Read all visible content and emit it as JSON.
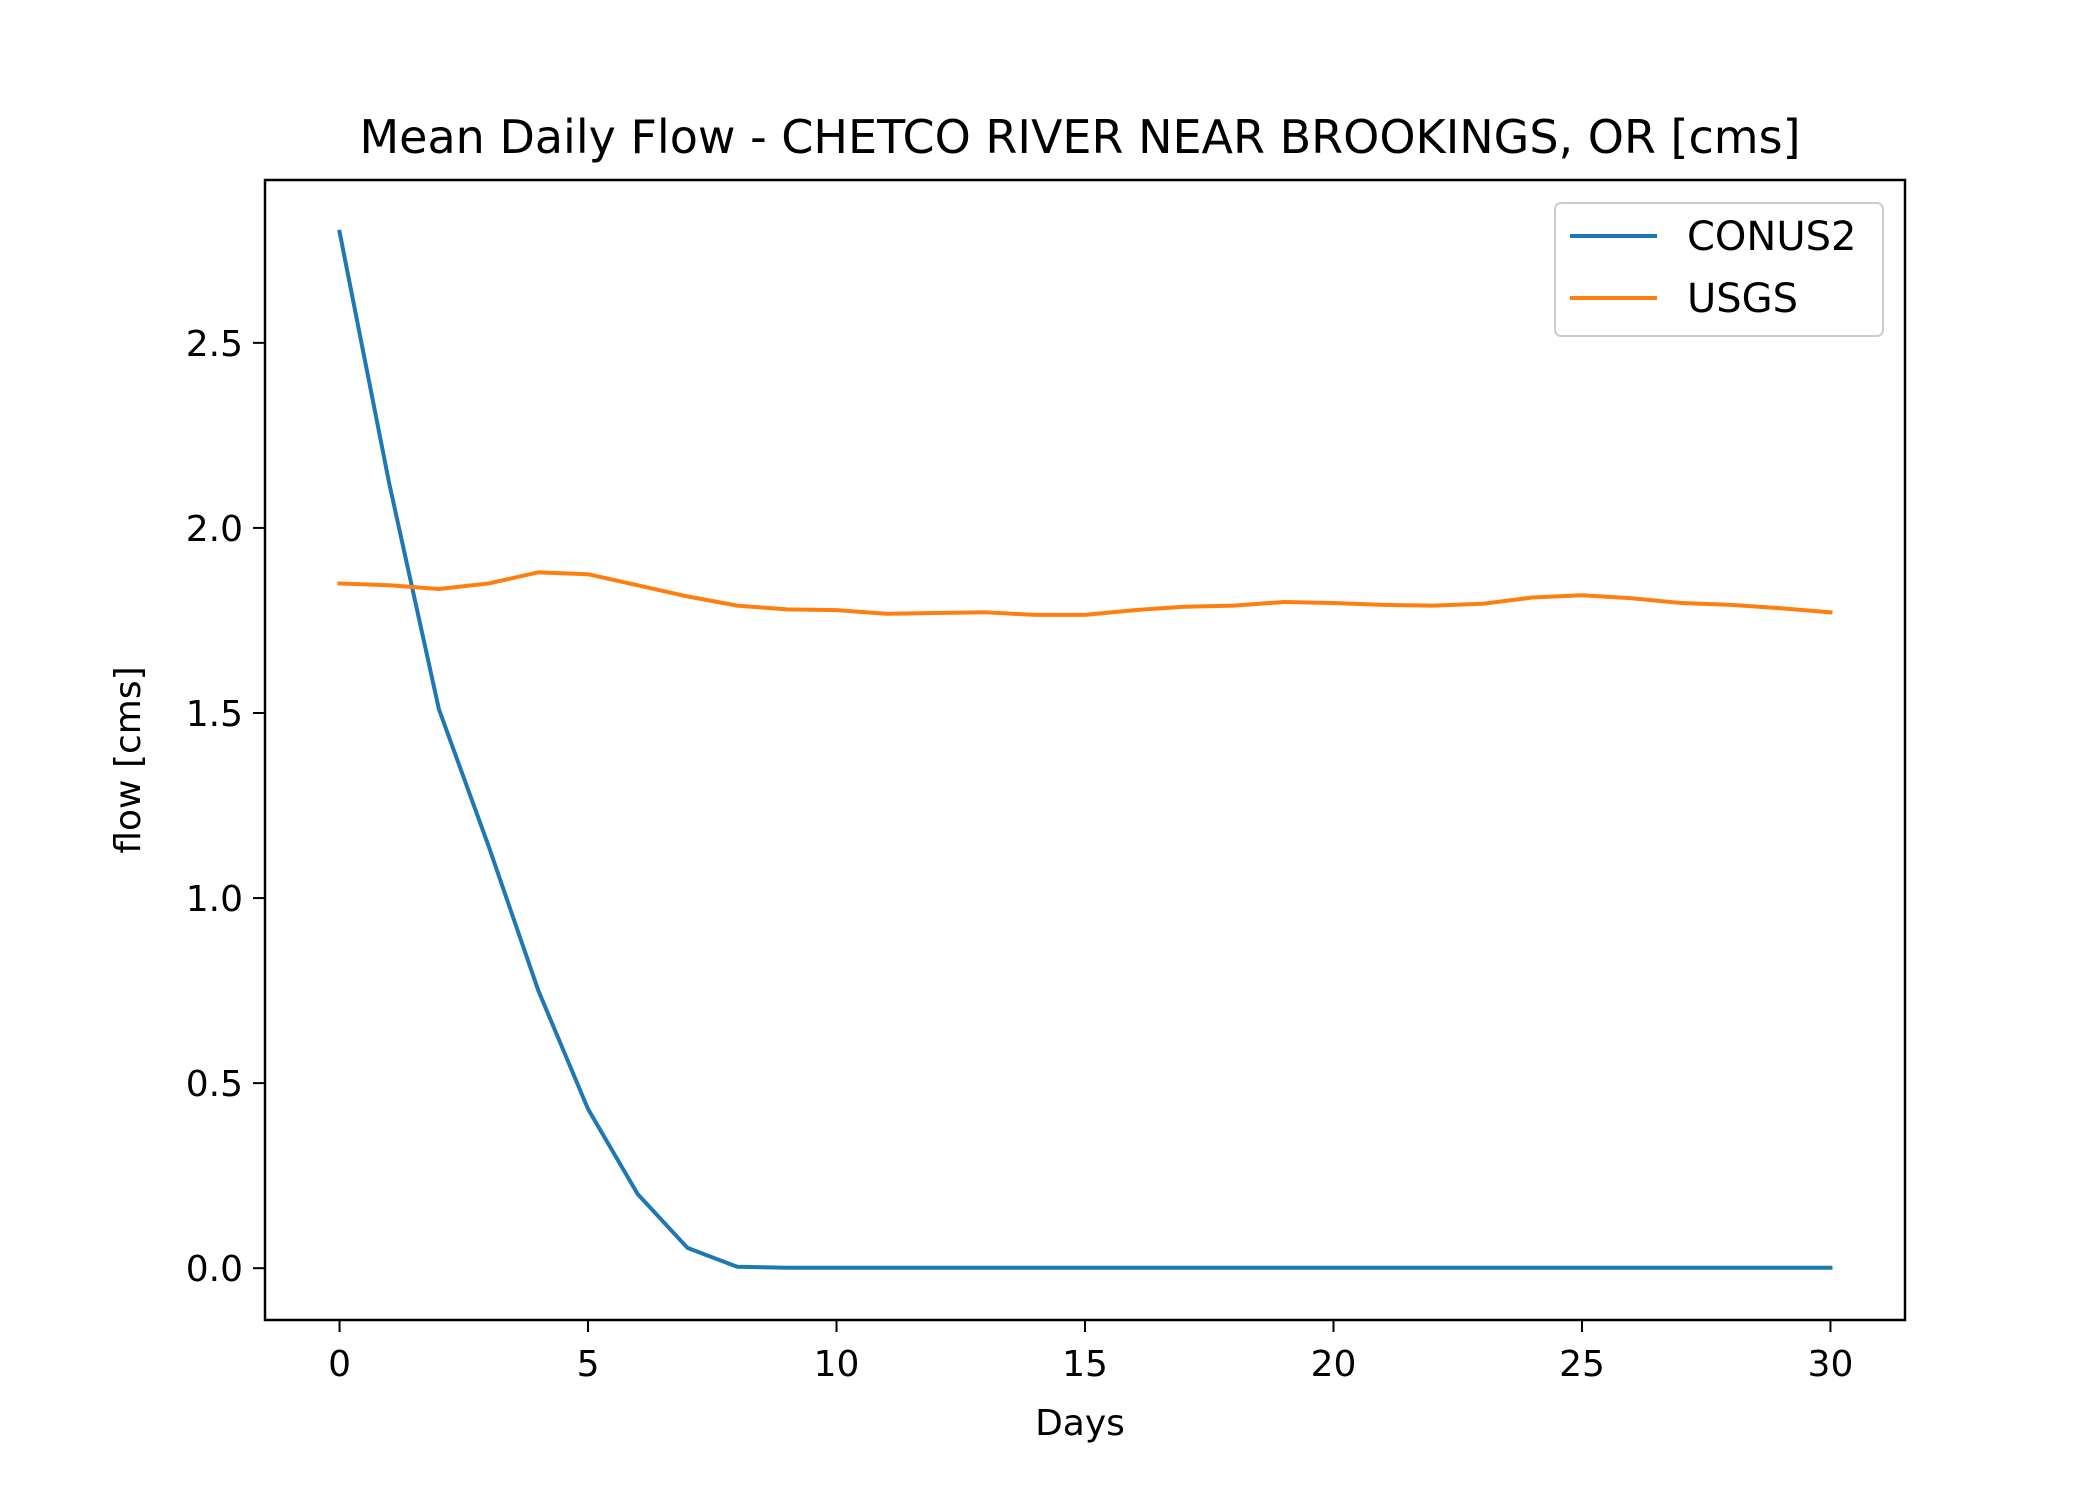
{
  "chart_data": {
    "type": "line",
    "title": "Mean Daily Flow - CHETCO RIVER NEAR BROOKINGS, OR [cms]",
    "xlabel": "Days",
    "ylabel": "flow [cms]",
    "xlim": [
      -1.5,
      31.5
    ],
    "ylim": [
      -0.14,
      2.94
    ],
    "xticks": [
      0,
      5,
      10,
      15,
      20,
      25,
      30
    ],
    "xtick_labels": [
      "0",
      "5",
      "10",
      "15",
      "20",
      "25",
      "30"
    ],
    "yticks": [
      0.0,
      0.5,
      1.0,
      1.5,
      2.0,
      2.5
    ],
    "ytick_labels": [
      "0.0",
      "0.5",
      "1.0",
      "1.5",
      "2.0",
      "2.5"
    ],
    "grid": false,
    "legend_position": "top-right",
    "x": [
      0,
      1,
      2,
      3,
      4,
      5,
      6,
      7,
      8,
      9,
      10,
      11,
      12,
      13,
      14,
      15,
      16,
      17,
      18,
      19,
      20,
      21,
      22,
      23,
      24,
      25,
      26,
      27,
      28,
      29,
      30
    ],
    "series": [
      {
        "name": "CONUS2",
        "color": "#1f77b4",
        "values": [
          2.8,
          2.12,
          1.51,
          1.14,
          0.75,
          0.43,
          0.2,
          0.055,
          0.004,
          0.001,
          0.001,
          0.001,
          0.001,
          0.001,
          0.001,
          0.001,
          0.001,
          0.001,
          0.001,
          0.001,
          0.001,
          0.001,
          0.001,
          0.001,
          0.001,
          0.001,
          0.001,
          0.001,
          0.001,
          0.001,
          0.001
        ]
      },
      {
        "name": "USGS",
        "color": "#ff7f0e",
        "values": [
          1.85,
          1.845,
          1.835,
          1.85,
          1.88,
          1.875,
          1.845,
          1.815,
          1.79,
          1.78,
          1.778,
          1.768,
          1.77,
          1.772,
          1.765,
          1.765,
          1.778,
          1.787,
          1.79,
          1.8,
          1.797,
          1.792,
          1.79,
          1.795,
          1.812,
          1.818,
          1.81,
          1.797,
          1.792,
          1.783,
          1.772
        ]
      }
    ]
  }
}
